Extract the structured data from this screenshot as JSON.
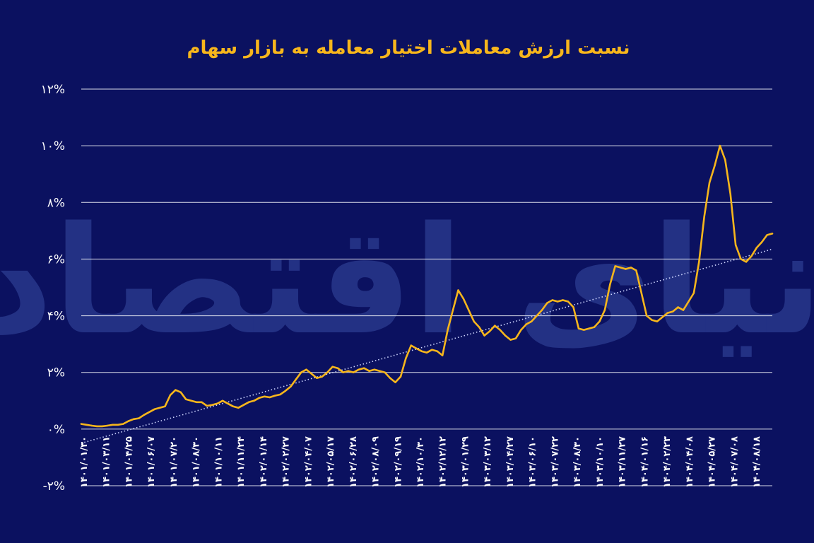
{
  "colors": {
    "background": "#0b1160",
    "line": "#f7b61c",
    "trend": "#cfd6ff",
    "grid": "#ffffff",
    "text": "#ffffff",
    "title": "#f7b61c",
    "watermark": "#233184"
  },
  "watermark": "دنیای اقتصاد",
  "chart_data": {
    "type": "line",
    "title": "نسبت ارزش معاملات اختیار معامله به بازار سهام",
    "xlabel": "",
    "ylabel": "",
    "ylim": [
      -2,
      12
    ],
    "grid": true,
    "yticks": [
      "-۲%",
      "۰%",
      "۲%",
      "۴%",
      "۶%",
      "۸%",
      "۱۰%",
      "۱۲%"
    ],
    "ytick_values": [
      -2,
      0,
      2,
      4,
      6,
      8,
      10,
      12
    ],
    "xticks": [
      "۱۴۰۱/۰۱/۳۰",
      "۱۴۰۱/۰۳/۱۱",
      "۱۴۰۱/۰۴/۲۵",
      "۱۴۰۱/۰۶/۰۷",
      "۱۴۰۱/۰۷/۲۰",
      "۱۴۰۱/۰۸/۳۰",
      "۱۴۰۱/۱۰/۱۱",
      "۱۴۰۱/۱۱/۲۴",
      "۱۴۰۲/۰۱/۱۴",
      "۱۴۰۲/۰۲/۲۷",
      "۱۴۰۲/۰۴/۰۷",
      "۱۴۰۲/۰۵/۱۷",
      "۱۴۰۲/۰۶/۲۸",
      "۱۴۰۲/۰۸/۰۹",
      "۱۴۰۲/۰۹/۱۹",
      "۱۴۰۲/۱۰/۳۰",
      "۱۴۰۲/۱۲/۱۲",
      "۱۴۰۳/۰۱/۲۹",
      "۱۴۰۳/۰۳/۱۲",
      "۱۴۰۳/۰۴/۲۷",
      "۱۴۰۳/۰۶/۱۰",
      "۱۴۰۳/۰۷/۲۲",
      "۱۴۰۳/۰۸/۳۰",
      "۱۴۰۳/۱۰/۱۰",
      "۱۴۰۳/۱۱/۲۷",
      "۱۴۰۴/۰۱/۱۶",
      "۱۴۰۴/۰۲/۲۳",
      "۱۴۰۴/۰۴/۰۸",
      "۱۴۰۴/۰۵/۲۷",
      "۱۴۰۴/۰۷/۰۸",
      "۱۴۰۴/۰۸/۱۸"
    ],
    "series": [
      {
        "values": [
          0.18,
          0.15,
          0.12,
          0.1,
          0.1,
          0.12,
          0.15,
          0.15,
          0.18,
          0.28,
          0.35,
          0.38,
          0.5,
          0.6,
          0.7,
          0.75,
          0.8,
          1.2,
          1.38,
          1.3,
          1.05,
          1.0,
          0.95,
          0.95,
          0.82,
          0.85,
          0.9,
          1.0,
          0.9,
          0.8,
          0.75,
          0.85,
          0.95,
          1.0,
          1.1,
          1.15,
          1.12,
          1.18,
          1.22,
          1.35,
          1.5,
          1.75,
          2.0,
          2.1,
          1.95,
          1.8,
          1.85,
          2.0,
          2.2,
          2.15,
          2.0,
          2.05,
          2.0,
          2.1,
          2.15,
          2.05,
          2.1,
          2.05,
          2.0,
          1.8,
          1.65,
          1.85,
          2.5,
          2.95,
          2.85,
          2.75,
          2.7,
          2.8,
          2.75,
          2.6,
          3.5,
          4.2,
          4.9,
          4.6,
          4.2,
          3.8,
          3.6,
          3.3,
          3.45,
          3.65,
          3.5,
          3.3,
          3.15,
          3.2,
          3.5,
          3.7,
          3.8,
          4.0,
          4.2,
          4.45,
          4.55,
          4.5,
          4.55,
          4.5,
          4.3,
          3.55,
          3.5,
          3.55,
          3.6,
          3.8,
          4.2,
          5.1,
          5.75,
          5.7,
          5.65,
          5.7,
          5.6,
          4.8,
          4.0,
          3.85,
          3.8,
          3.95,
          4.1,
          4.15,
          4.3,
          4.2,
          4.5,
          4.8,
          5.9,
          7.5,
          8.7,
          9.3,
          10.0,
          9.5,
          8.3,
          6.5,
          6.0,
          5.9,
          6.1,
          6.4,
          6.6,
          6.85,
          6.9
        ]
      }
    ],
    "trend": {
      "style": "dotted",
      "from": -0.5,
      "to": 6.35
    }
  }
}
